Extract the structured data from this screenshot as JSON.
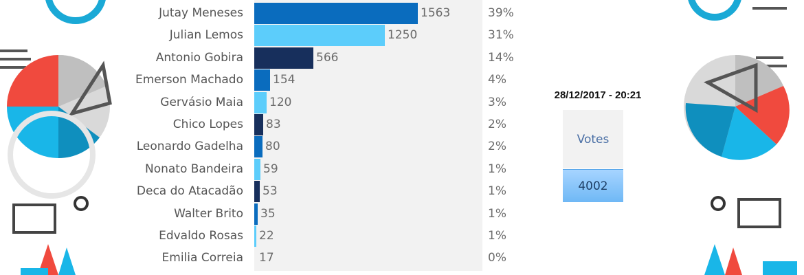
{
  "timestamp": "28/12/2017 - 20:21",
  "votes": {
    "label": "Votes",
    "total": "4002"
  },
  "colors": {
    "dark_blue": "#0a6cbe",
    "light_blue": "#5ccdfb",
    "navy": "#172f5c",
    "panel": "#f2f2f2"
  },
  "chart_data": {
    "type": "bar",
    "orientation": "horizontal",
    "categories": [
      "Jutay Meneses",
      "Julian Lemos",
      "Antonio Gobira",
      "Emerson Machado",
      "Gervásio Maia",
      "Chico Lopes",
      "Leonardo Gadelha",
      "Nonato Bandeira",
      "Deca do Atacadão",
      "Walter Brito",
      "Edvaldo Rosas",
      "Emilia Correia"
    ],
    "values": [
      1563,
      1250,
      566,
      154,
      120,
      83,
      80,
      59,
      53,
      35,
      22,
      17
    ],
    "percent_labels": [
      "39%",
      "31%",
      "14%",
      "4%",
      "3%",
      "2%",
      "2%",
      "1%",
      "1%",
      "1%",
      "1%",
      "0%"
    ],
    "bar_colors": [
      "#0a6cbe",
      "#5ccdfb",
      "#172f5c",
      "#0a6cbe",
      "#5ccdfb",
      "#172f5c",
      "#0a6cbe",
      "#5ccdfb",
      "#172f5c",
      "#0a6cbe",
      "#5ccdfb",
      "#f2f2f2"
    ],
    "xlim": [
      0,
      2000
    ],
    "grid": false,
    "legend": "none"
  }
}
